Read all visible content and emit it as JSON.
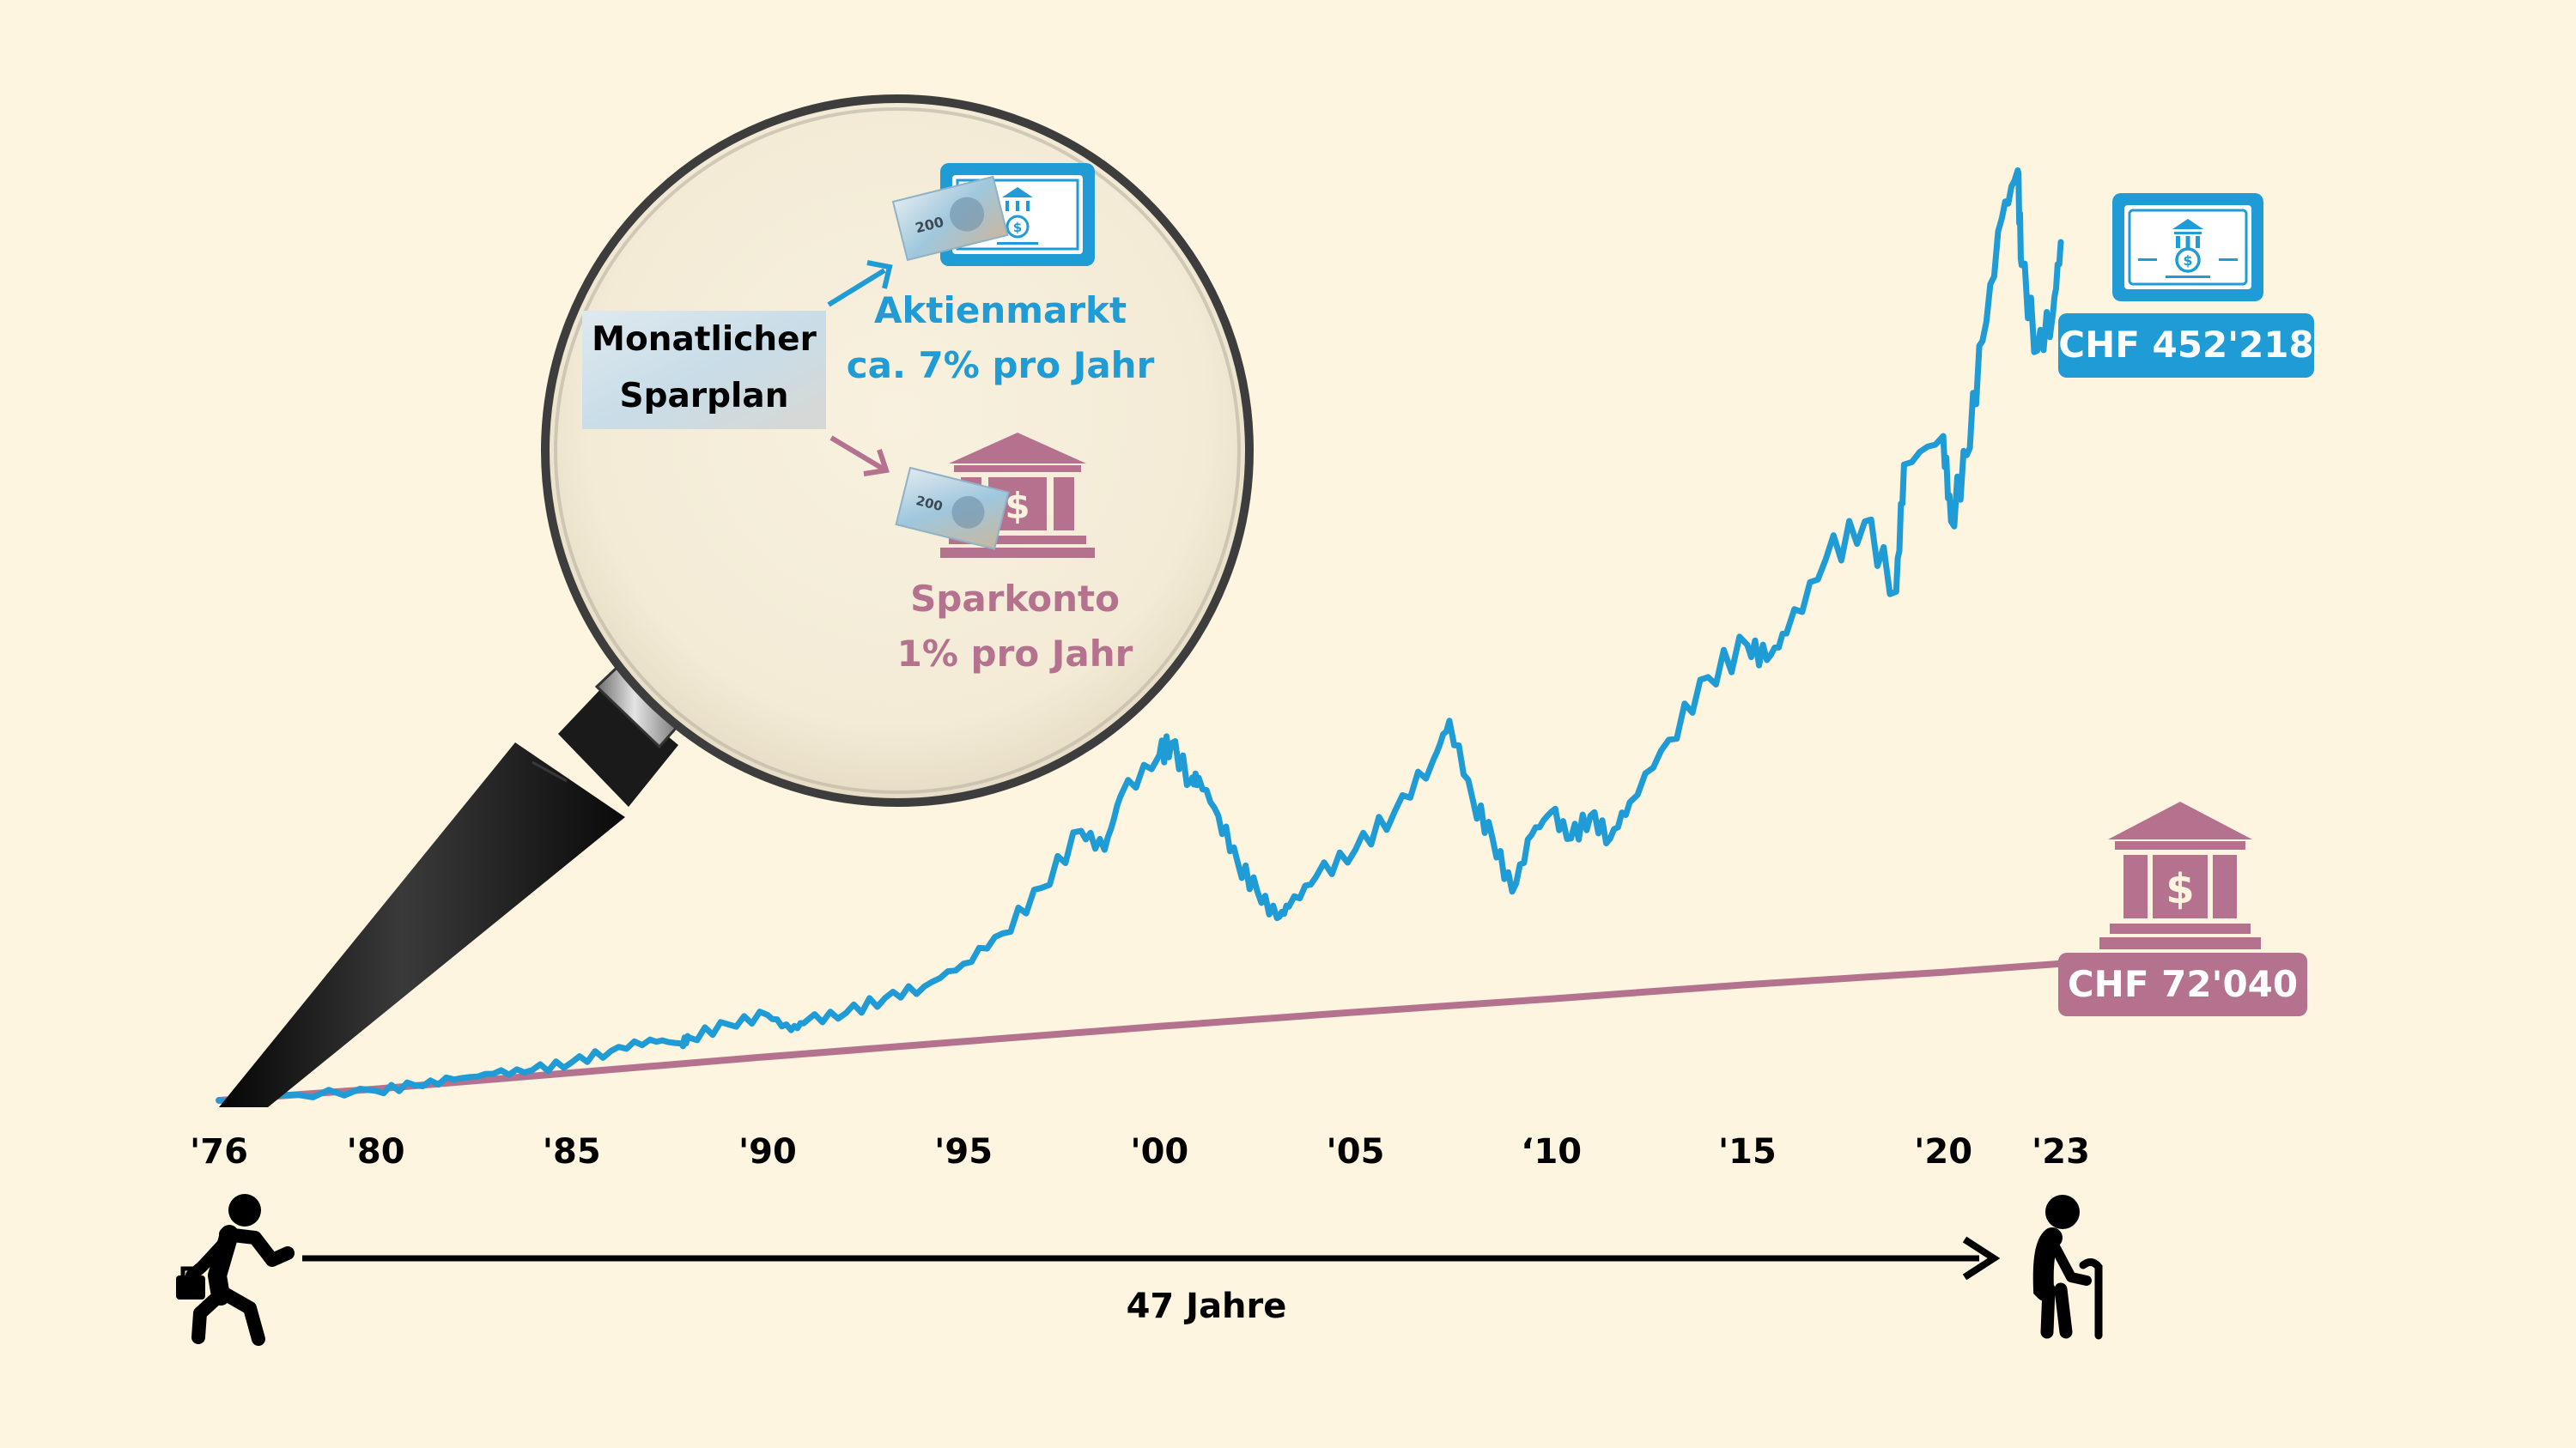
{
  "chart_data": {
    "type": "line",
    "title": "",
    "xlabel": "",
    "ylabel": "",
    "grid": false,
    "x_ticks": [
      "'76",
      "'80",
      "'85",
      "'90",
      "'95",
      "'00",
      "'05",
      "‘10",
      "'15",
      "'20",
      "'23"
    ],
    "x_tick_years": [
      1976,
      1980,
      1985,
      1990,
      1995,
      2000,
      2005,
      2010,
      2015,
      2020,
      2023
    ],
    "xlim": [
      1976,
      2023
    ],
    "series": [
      {
        "name": "Aktienmarkt",
        "color": "#1f9bd6",
        "x": [
          1976,
          1978,
          1980,
          1981,
          1982,
          1983,
          1984,
          1985,
          1986,
          1987,
          1987.8,
          1988,
          1989,
          1990,
          1990.6,
          1991,
          1992,
          1993,
          1994,
          1995,
          1996,
          1997,
          1998,
          1998.6,
          1999,
          2000,
          2000.3,
          2000.8,
          2001,
          2001.5,
          2002,
          2002.5,
          2003,
          2003.3,
          2004,
          2005,
          2006,
          2007,
          2007.4,
          2008,
          2008.5,
          2009,
          2009.5,
          2010,
          2010.5,
          2011,
          2011.5,
          2012,
          2013,
          2014,
          2015,
          2015.5,
          2016,
          2017,
          2018,
          2018.8,
          2019,
          2020,
          2020.2,
          2020.6,
          2021,
          2021.5,
          2021.9,
          2022,
          2022.4,
          2022.8,
          2023
        ],
        "y": [
          0,
          3000,
          5000,
          8000,
          11000,
          14000,
          16000,
          20000,
          26000,
          32000,
          30000,
          33000,
          40000,
          45000,
          37000,
          42000,
          46000,
          54000,
          60000,
          72000,
          88000,
          112000,
          142000,
          132000,
          160000,
          182000,
          188000,
          168000,
          170000,
          150000,
          125000,
          110000,
          96000,
          102000,
          118000,
          132000,
          152000,
          180000,
          200000,
          158000,
          138000,
          110000,
          140000,
          152000,
          138000,
          150000,
          138000,
          157000,
          190000,
          223000,
          240000,
          232000,
          246000,
          285000,
          305000,
          268000,
          335000,
          350000,
          305000,
          340000,
          400000,
          465000,
          490000,
          440000,
          395000,
          415000,
          452218
        ]
      },
      {
        "name": "Sparkonto",
        "color": "#b5728f",
        "x": [
          1976,
          1980,
          1985,
          1990,
          1995,
          2000,
          2005,
          2010,
          2015,
          2020,
          2023
        ],
        "y": [
          0,
          6000,
          14500,
          23000,
          31000,
          39000,
          46500,
          53500,
          61000,
          67500,
          72040
        ]
      }
    ],
    "annotations": {
      "stock_end": "CHF 452'218",
      "savings_end": "CHF 72'040"
    }
  },
  "magnifier": {
    "plan_line1": "Monatlicher",
    "plan_line2": "Sparplan",
    "stock_label": "Aktienmarkt",
    "stock_rate": "ca. 7% pro Jahr",
    "savings_label": "Sparkonto",
    "savings_rate": "1% pro Jahr",
    "note_value": "200"
  },
  "timeline": {
    "duration": "47 Jahre"
  },
  "colors": {
    "background": "#fdf5df",
    "stock": "#1f9bd6",
    "savings": "#b5728f",
    "text": "#000000"
  },
  "icons": [
    "bank-note-icon",
    "bank-building-icon",
    "walking-person-icon",
    "elderly-person-icon",
    "magnifying-glass-icon",
    "banknote-icon"
  ]
}
